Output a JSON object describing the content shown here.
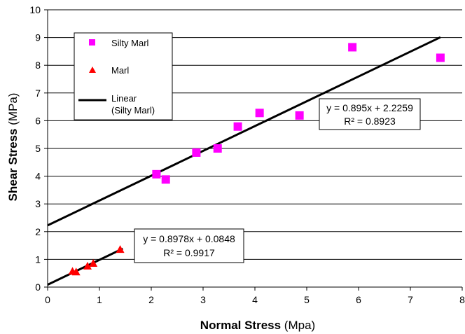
{
  "chart_data": {
    "type": "scatter",
    "xlabel_bold": "Normal Stress",
    "xlabel_unit": " (Mpa)",
    "ylabel_bold": "Shear Stress",
    "ylabel_unit": " (MPa)",
    "xlim": [
      0,
      8
    ],
    "ylim": [
      0,
      10
    ],
    "xticks": [
      "0",
      "1",
      "2",
      "3",
      "4",
      "5",
      "6",
      "7",
      "8"
    ],
    "yticks": [
      "0",
      "1",
      "2",
      "3",
      "4",
      "5",
      "6",
      "7",
      "8",
      "9",
      "10"
    ],
    "grid": true,
    "legend_position": "top-left",
    "series": [
      {
        "name": "Silty Marl",
        "marker": "square",
        "color": "#ff00ff",
        "x": [
          2.1,
          2.28,
          2.87,
          3.28,
          3.67,
          4.09,
          4.86,
          5.88,
          7.58
        ],
        "y": [
          4.07,
          3.88,
          4.85,
          5.0,
          5.79,
          6.28,
          6.19,
          8.65,
          8.27
        ]
      },
      {
        "name": "Marl",
        "marker": "triangle",
        "color": "#ff0000",
        "x": [
          0.48,
          0.55,
          0.77,
          0.88,
          1.4
        ],
        "y": [
          0.57,
          0.55,
          0.76,
          0.86,
          1.36
        ]
      }
    ],
    "trendlines": [
      {
        "legend_label_line1": "Linear",
        "legend_label_line2": "(Silty Marl)",
        "slope": 0.895,
        "intercept": 2.2259,
        "x_range": [
          0,
          7.58
        ],
        "color": "#000000",
        "equation": "y = 0.895x + 2.2259",
        "r2": "R² = 0.8923"
      },
      {
        "slope": 0.8978,
        "intercept": 0.0848,
        "x_range": [
          0,
          1.45
        ],
        "color": "#000000",
        "equation": "y = 0.8978x + 0.0848",
        "r2": "R² = 0.9917"
      }
    ]
  }
}
